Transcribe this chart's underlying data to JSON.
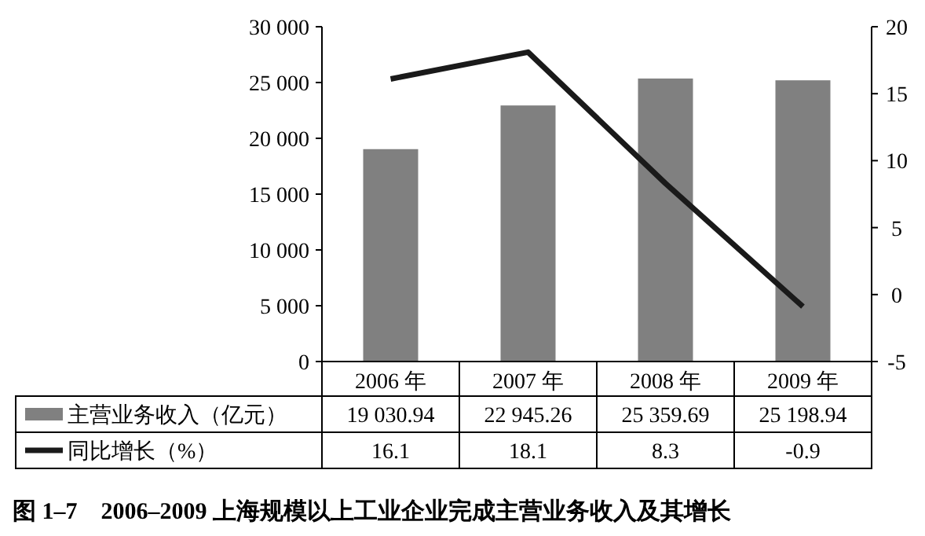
{
  "chart_data": {
    "type": "bar",
    "title": "图 1–7　2006–2009 上海规模以上工业企业完成主营业务收入及其增长",
    "categories": [
      "2006 年",
      "2007 年",
      "2008 年",
      "2009 年"
    ],
    "series": [
      {
        "name": "主营业务收入（亿元）",
        "color": "#808080",
        "values": [
          19030.94,
          22945.26,
          25359.69,
          25198.94
        ],
        "value_labels": [
          "19 030.94",
          "22 945.26",
          "25 359.69",
          "25 198.94"
        ]
      },
      {
        "name": "同比增长（%）",
        "type": "line",
        "axis": "y2",
        "color": "#1a1a1a",
        "values": [
          16.1,
          18.1,
          8.3,
          -0.9
        ],
        "value_labels": [
          "16.1",
          "18.1",
          "8.3",
          "-0.9"
        ]
      }
    ],
    "ylim": [
      0,
      30000
    ],
    "yticks": [
      0,
      {
        "value": 5000,
        "label": "5 000"
      },
      {
        "value": 10000,
        "label": "10 000"
      },
      {
        "value": 15000,
        "label": "15 000"
      },
      {
        "value": 20000,
        "label": "20 000"
      },
      {
        "value": 25000,
        "label": "25 000"
      },
      {
        "value": 30000,
        "label": "30 000"
      }
    ],
    "y2lim": [
      -5,
      20
    ],
    "y2ticks": [
      -5,
      0,
      5,
      10,
      15,
      20
    ],
    "legend": "bottom"
  }
}
